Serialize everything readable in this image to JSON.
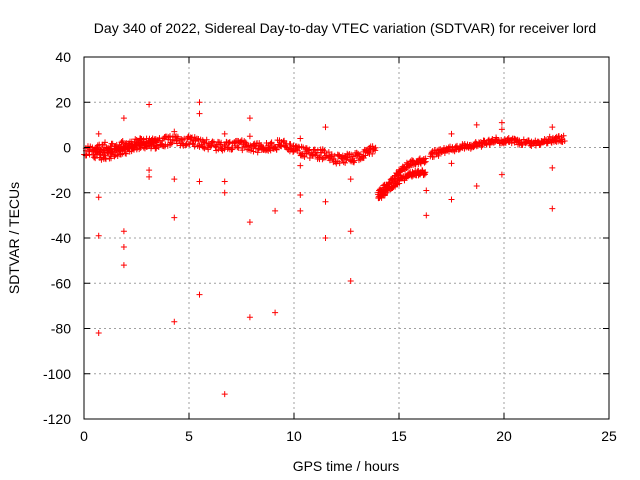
{
  "chart_data": {
    "type": "scatter",
    "title": "Day 340 of 2022, Sidereal Day-to-day VTEC variation (SDTVAR) for receiver lord",
    "xlabel": "GPS time / hours",
    "ylabel": "SDTVAR / TECUs",
    "xlim": [
      0,
      25
    ],
    "ylim": [
      -120,
      40
    ],
    "xticks": [
      0,
      5,
      10,
      15,
      20,
      25
    ],
    "yticks": [
      -120,
      -100,
      -80,
      -60,
      -40,
      -20,
      0,
      20,
      40
    ],
    "grid": true,
    "marker": "+",
    "color": "#ff0000",
    "main_trend": [
      [
        0.0,
        -2
      ],
      [
        0.5,
        -1
      ],
      [
        1.0,
        0
      ],
      [
        1.5,
        0
      ],
      [
        2.0,
        1
      ],
      [
        2.5,
        2
      ],
      [
        3.0,
        2
      ],
      [
        3.5,
        2
      ],
      [
        4.0,
        3
      ],
      [
        4.5,
        3
      ],
      [
        5.0,
        3
      ],
      [
        5.5,
        2
      ],
      [
        6.0,
        1
      ],
      [
        6.5,
        0
      ],
      [
        7.0,
        1
      ],
      [
        7.5,
        1
      ],
      [
        8.0,
        0
      ],
      [
        8.5,
        0
      ],
      [
        9.0,
        1
      ],
      [
        9.5,
        1
      ],
      [
        10.0,
        -1
      ],
      [
        10.5,
        -2
      ],
      [
        11.0,
        -3
      ],
      [
        11.5,
        -3
      ],
      [
        12.0,
        -5
      ],
      [
        12.5,
        -5
      ],
      [
        13.0,
        -4
      ],
      [
        13.5,
        -2
      ],
      [
        13.9,
        0
      ]
    ],
    "secondary_trend": [
      [
        0.5,
        -3
      ],
      [
        1.0,
        -4
      ],
      [
        1.5,
        -2
      ],
      [
        2.0,
        -1
      ],
      [
        2.5,
        0
      ],
      [
        3.0,
        1
      ],
      [
        3.5,
        1
      ]
    ],
    "night_trend_upper": [
      [
        14.0,
        -20
      ],
      [
        14.5,
        -16
      ],
      [
        15.0,
        -11
      ],
      [
        15.5,
        -7
      ],
      [
        16.0,
        -6
      ],
      [
        16.3,
        -6
      ]
    ],
    "night_trend_lower": [
      [
        14.0,
        -23
      ],
      [
        14.5,
        -18
      ],
      [
        15.0,
        -15
      ],
      [
        15.5,
        -12
      ],
      [
        16.0,
        -11
      ],
      [
        16.3,
        -11
      ]
    ],
    "main_trend_2": [
      [
        16.5,
        -3
      ],
      [
        17.0,
        -2
      ],
      [
        17.5,
        -1
      ],
      [
        18.0,
        0
      ],
      [
        18.5,
        1
      ],
      [
        19.0,
        2
      ],
      [
        19.5,
        3
      ],
      [
        20.0,
        3
      ],
      [
        20.5,
        3
      ],
      [
        21.0,
        2
      ],
      [
        21.5,
        2
      ],
      [
        22.0,
        3
      ],
      [
        22.5,
        4
      ],
      [
        22.9,
        4
      ]
    ],
    "outliers": [
      [
        0.7,
        -82
      ],
      [
        0.7,
        -39
      ],
      [
        0.7,
        -22
      ],
      [
        0.7,
        6
      ],
      [
        1.9,
        13
      ],
      [
        1.9,
        -37
      ],
      [
        1.9,
        -44
      ],
      [
        1.9,
        -52
      ],
      [
        3.1,
        19
      ],
      [
        3.1,
        -10
      ],
      [
        3.1,
        -13
      ],
      [
        4.3,
        7
      ],
      [
        4.3,
        -14
      ],
      [
        4.3,
        -31
      ],
      [
        4.3,
        -77
      ],
      [
        5.5,
        20
      ],
      [
        5.5,
        15
      ],
      [
        5.5,
        -15
      ],
      [
        5.5,
        -65
      ],
      [
        6.7,
        6
      ],
      [
        6.7,
        -15
      ],
      [
        6.7,
        -20
      ],
      [
        6.7,
        -109
      ],
      [
        7.9,
        13
      ],
      [
        7.9,
        5
      ],
      [
        7.9,
        -33
      ],
      [
        7.9,
        -75
      ],
      [
        9.1,
        -28
      ],
      [
        9.1,
        -73
      ],
      [
        10.3,
        4
      ],
      [
        10.3,
        -8
      ],
      [
        10.3,
        -21
      ],
      [
        10.3,
        -28
      ],
      [
        11.5,
        9
      ],
      [
        11.5,
        -24
      ],
      [
        11.5,
        -40
      ],
      [
        12.7,
        -14
      ],
      [
        12.7,
        -37
      ],
      [
        12.7,
        -59
      ],
      [
        16.3,
        -19
      ],
      [
        16.3,
        -30
      ],
      [
        17.5,
        6
      ],
      [
        17.5,
        -7
      ],
      [
        17.5,
        -23
      ],
      [
        18.7,
        10
      ],
      [
        18.7,
        -17
      ],
      [
        19.9,
        11
      ],
      [
        19.9,
        8
      ],
      [
        19.9,
        -12
      ],
      [
        22.3,
        9
      ],
      [
        22.3,
        -9
      ],
      [
        22.3,
        -27
      ]
    ]
  }
}
